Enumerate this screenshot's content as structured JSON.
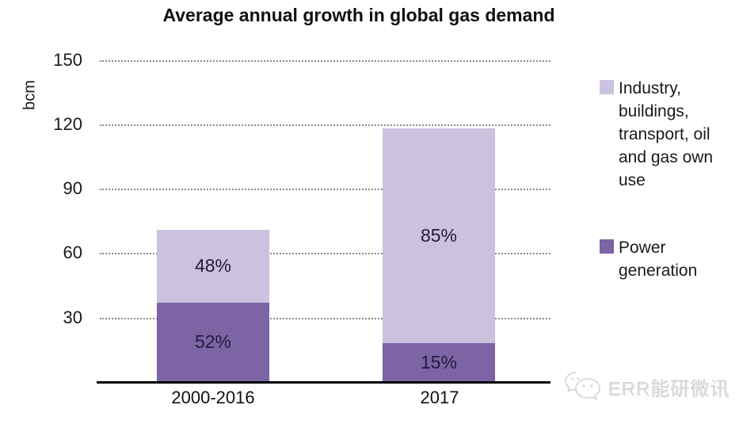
{
  "title": "Average annual growth in global gas demand",
  "chart_data": {
    "type": "bar",
    "stacked": true,
    "title": "Average annual growth in global gas demand",
    "categories": [
      "2000-2016",
      "2017"
    ],
    "series": [
      {
        "name": "Power generation",
        "color": "#7c64a5",
        "values_bcm": [
          37,
          18
        ],
        "percent_labels": [
          "52%",
          "15%"
        ]
      },
      {
        "name": "Industry, buildings, transport, oil and gas own use",
        "color": "#ccc1de",
        "percent_labels": [
          "48%",
          "85%"
        ],
        "values_bcm": [
          34,
          100
        ]
      }
    ],
    "totals_bcm": [
      71,
      118
    ],
    "xlabel": "",
    "ylabel": "bcm",
    "yticks": [
      150,
      120,
      90,
      60,
      30
    ],
    "ylim": [
      0,
      150
    ],
    "grid": "horizontal-dotted",
    "legend_position": "right"
  },
  "legend": {
    "items": [
      {
        "label": "Industry, buildings, transport, oil and gas own use",
        "color": "#ccc1de"
      },
      {
        "label": "Power generation",
        "color": "#7c64a5"
      }
    ]
  },
  "watermark": {
    "text": "ERR能研微讯",
    "icon": "wechat-icon"
  },
  "colors": {
    "industry_light_purple": "#ccc1de",
    "power_dark_purple": "#7c64a5",
    "gridline_gray": "#8a8a8a",
    "axis_black": "#000000",
    "bar_label_text": "#221b3a"
  }
}
